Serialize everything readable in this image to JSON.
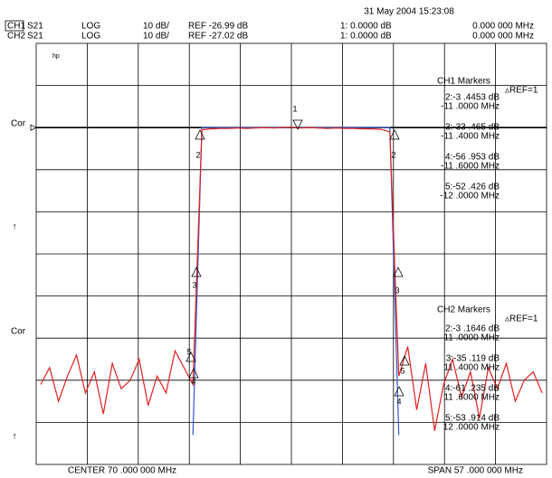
{
  "chart_data": {
    "type": "line",
    "date": "31 May 2004  15:23:08",
    "channels": [
      {
        "param": "S21",
        "format": "LOG",
        "scale": "10 dB/",
        "ref": "REF -26.99 dB",
        "marker": "1: 0.0000  dB",
        "marker_freq": "0.000  000  MHz"
      },
      {
        "param": "S21",
        "format": "LOG",
        "scale": "10 dB/",
        "ref": "REF -27.02 dB",
        "marker": "1: 0.0000  dB",
        "marker_freq": "0.000  000  MHz"
      }
    ],
    "side_labels": [
      "Cor",
      "↑",
      "Cor",
      "↑"
    ],
    "logo": "hp",
    "marker_numbers": [
      "1",
      "2",
      "3",
      "4",
      "5"
    ],
    "marker_tables": [
      {
        "title": "CH1 Markers",
        "ref": "▵REF=1",
        "entries": [
          [
            "2:-3 .4453  dB",
            "-11 .0000  MHz"
          ],
          [
            "3:-33 .465  dB",
            "-11 .4000  MHz"
          ],
          [
            "4:-56 .953  dB",
            "-11 .6000  MHz"
          ],
          [
            "5:-52 .426  dB",
            "-12 .0000  MHz"
          ]
        ]
      },
      {
        "title": "CH2 Markers",
        "ref": "▵REF=1",
        "entries": [
          [
            "2:-3 .1646  dB",
            "11 .0000  MHz"
          ],
          [
            "3:-35 .119  dB",
            "11 .4000  MHz"
          ],
          [
            "4:-61 .235  dB",
            "11 .6000  MHz"
          ],
          [
            "5:-53 .914  dB",
            "12 .0000  MHz"
          ]
        ]
      }
    ],
    "center": "CENTER  70 .000  000  MHz",
    "span": "SPAN  57 .000  000  MHz",
    "xlim": [
      41.5,
      98.5
    ],
    "ylim": [
      -106.99,
      -6.99
    ],
    "ref_value": -26.99,
    "x": [
      42,
      43,
      44,
      45,
      46,
      47,
      48,
      49,
      50,
      51,
      52,
      53,
      54,
      55,
      56,
      57,
      58,
      59,
      60,
      61,
      62,
      63,
      64,
      65,
      66,
      67,
      68,
      69,
      70,
      71,
      72,
      73,
      74,
      75,
      76,
      77,
      78,
      79,
      80,
      81,
      82,
      83,
      84,
      85,
      86,
      87,
      88,
      89,
      90,
      91,
      92,
      93,
      94,
      95,
      96,
      97,
      98
    ],
    "series": [
      {
        "name": "CH1",
        "color": "#3355cc",
        "values": [
          null,
          null,
          null,
          null,
          null,
          null,
          null,
          null,
          null,
          null,
          null,
          null,
          null,
          null,
          null,
          null,
          null,
          -100,
          -27.0,
          -27.0,
          -27.0,
          -27.0,
          -27.0,
          -27.0,
          -27.0,
          -27.0,
          -27.0,
          -27.0,
          -27.0,
          -27.0,
          -27.0,
          -27.0,
          -27.0,
          -27.0,
          -27.0,
          -27.0,
          -27.0,
          -27.0,
          -27.0,
          -27.0,
          -100,
          null,
          null,
          null,
          null,
          null,
          null,
          null,
          null,
          null,
          null,
          null,
          null,
          null,
          null,
          null,
          null
        ]
      },
      {
        "name": "CH2",
        "color": "#e02020",
        "values": [
          -88,
          -84,
          -92,
          -86,
          -81,
          -90,
          -85,
          -95,
          -83,
          -89,
          -87,
          -82,
          -93,
          -86,
          -90,
          -80,
          -84,
          -88,
          -27.5,
          -27.3,
          -27.2,
          -27.2,
          -27.1,
          -27.2,
          -27.1,
          -27.0,
          -27.1,
          -27.0,
          -26.9,
          -27.1,
          -27.0,
          -27.1,
          -27.2,
          -27.1,
          -27.2,
          -27.2,
          -27.3,
          -27.3,
          -27.4,
          -28.0,
          -86,
          -79,
          -94,
          -83,
          -99,
          -88,
          -82,
          -91,
          -85,
          -96,
          -84,
          -89,
          -83,
          -92,
          -87,
          -85,
          -90
        ]
      }
    ]
  }
}
